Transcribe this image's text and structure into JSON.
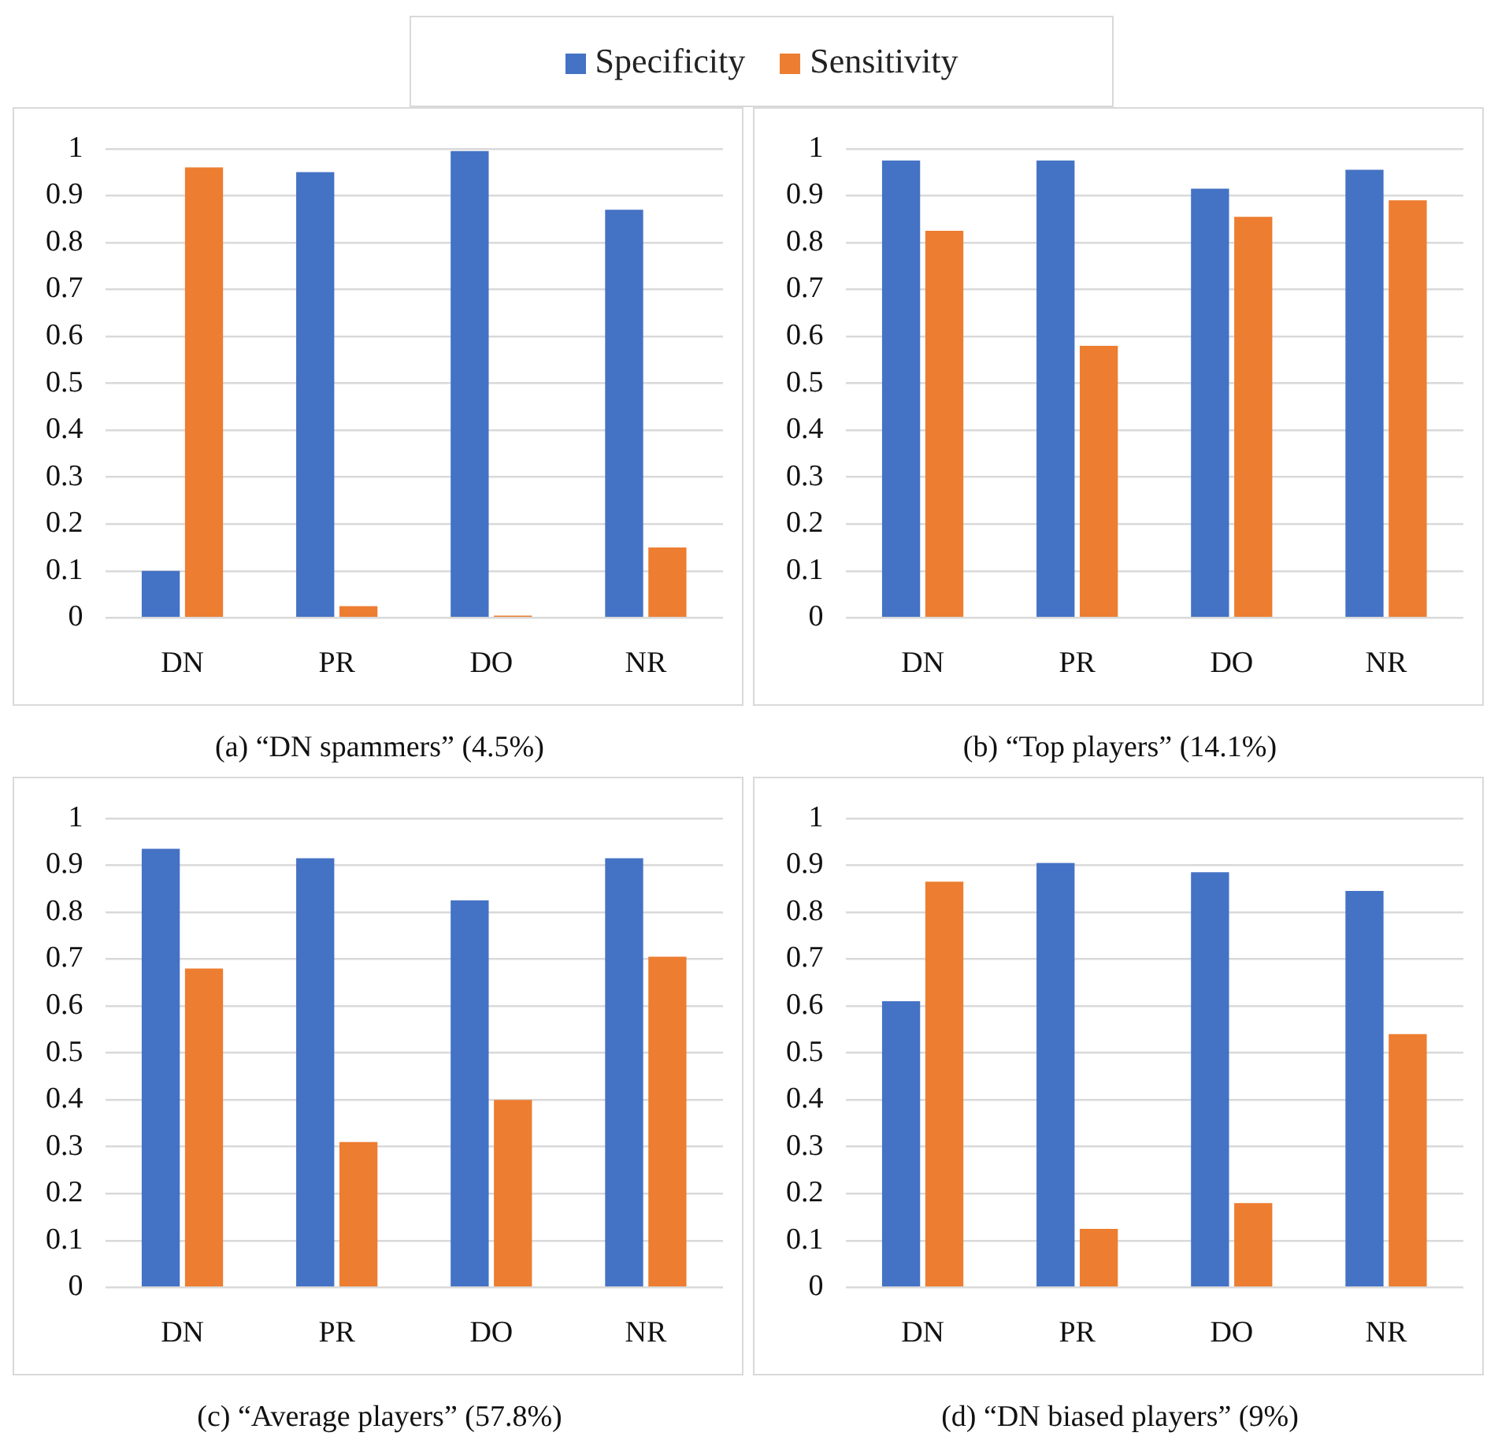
{
  "chart_data": [
    {
      "type": "bar",
      "title": "(a) “DN spammers” (4.5%)",
      "categories": [
        "DN",
        "PR",
        "DO",
        "NR"
      ],
      "series": [
        {
          "name": "Specificity",
          "color": "#4472c4",
          "values": [
            0.1,
            0.95,
            0.995,
            0.87
          ]
        },
        {
          "name": "Sensitivity",
          "color": "#ed7d31",
          "values": [
            0.96,
            0.025,
            0.005,
            0.15
          ]
        }
      ],
      "ylim": [
        0,
        1
      ],
      "yticks": [
        0,
        0.1,
        0.2,
        0.3,
        0.4,
        0.5,
        0.6,
        0.7,
        0.8,
        0.9,
        1
      ],
      "grid": "y",
      "legend": "top"
    },
    {
      "type": "bar",
      "title": "(b) “Top players” (14.1%)",
      "categories": [
        "DN",
        "PR",
        "DO",
        "NR"
      ],
      "series": [
        {
          "color": "#4472c4",
          "values": [
            0.975,
            0.975,
            0.915,
            0.955
          ]
        },
        {
          "color": "#ed7d31",
          "values": [
            0.825,
            0.58,
            0.855,
            0.89
          ]
        }
      ],
      "ylim": [
        0,
        1
      ],
      "yticks": [
        0,
        0.1,
        0.2,
        0.3,
        0.4,
        0.5,
        0.6,
        0.7,
        0.8,
        0.9,
        1
      ],
      "grid": "y"
    },
    {
      "type": "bar",
      "title": "(c) “Average players” (57.8%)",
      "categories": [
        "DN",
        "PR",
        "DO",
        "NR"
      ],
      "series": [
        {
          "color": "#4472c4",
          "values": [
            0.935,
            0.915,
            0.825,
            0.915
          ]
        },
        {
          "color": "#ed7d31",
          "values": [
            0.68,
            0.31,
            0.4,
            0.705
          ]
        }
      ],
      "ylim": [
        0,
        1
      ],
      "yticks": [
        0,
        0.1,
        0.2,
        0.3,
        0.4,
        0.5,
        0.6,
        0.7,
        0.8,
        0.9,
        1
      ],
      "grid": "y"
    },
    {
      "type": "bar",
      "title": "(d) “DN biased players” (9%)",
      "categories": [
        "DN",
        "PR",
        "DO",
        "NR"
      ],
      "series": [
        {
          "color": "#4472c4",
          "values": [
            0.61,
            0.905,
            0.885,
            0.845
          ]
        },
        {
          "color": "#ed7d31",
          "values": [
            0.865,
            0.125,
            0.18,
            0.54
          ]
        }
      ],
      "ylim": [
        0,
        1
      ],
      "yticks": [
        0,
        0.1,
        0.2,
        0.3,
        0.4,
        0.5,
        0.6,
        0.7,
        0.8,
        0.9,
        1
      ],
      "grid": "y"
    }
  ]
}
